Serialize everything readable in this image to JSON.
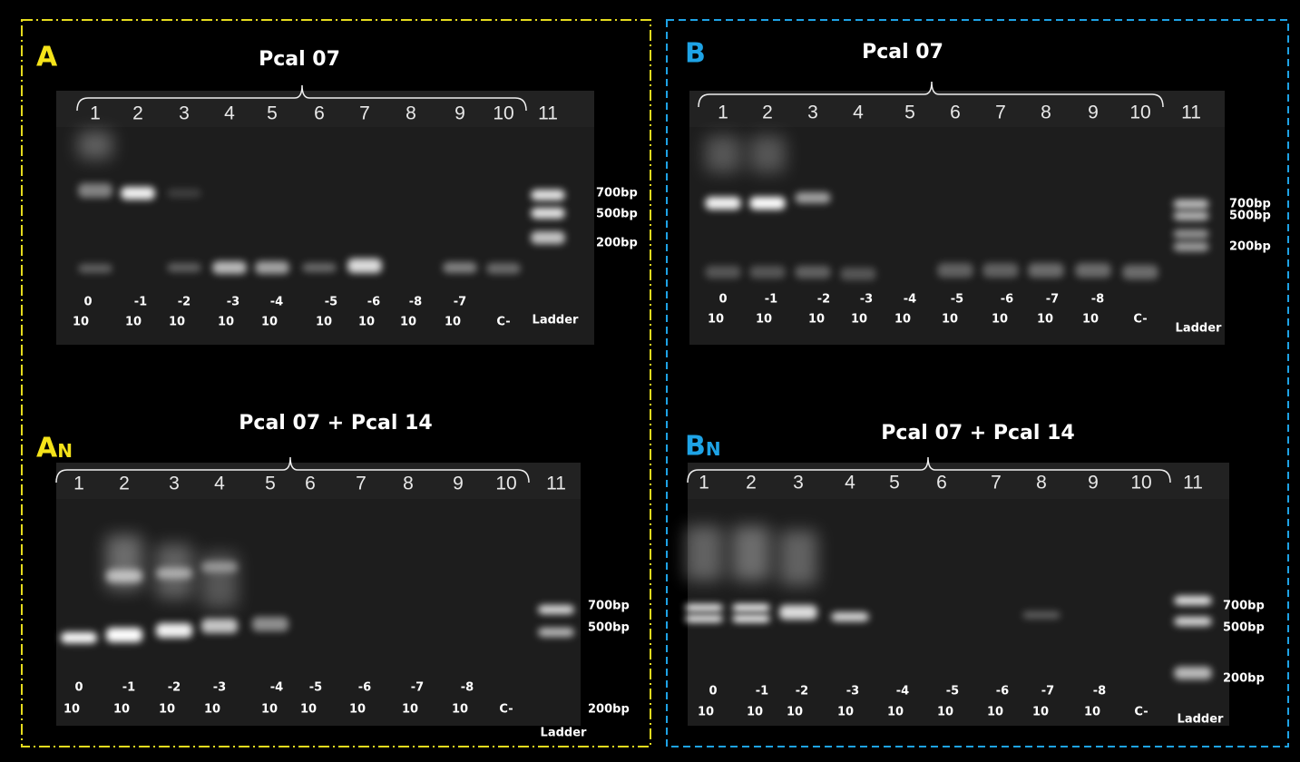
{
  "panels": [
    {
      "label": "A",
      "title": "Pcal  07",
      "lane_numbers": [
        1,
        2,
        3,
        4,
        5,
        6,
        7,
        8,
        9,
        10,
        11
      ],
      "exponents": [
        "0",
        "-1",
        "-2",
        "-3",
        "-4",
        "-5",
        "-6",
        "-8",
        "-7"
      ],
      "bases": [
        "10",
        "10",
        "10",
        "10",
        "10",
        "10",
        "10",
        "10",
        "10",
        "C-",
        "Ladder"
      ],
      "ladder_sizes": [
        "700bp",
        "500bp",
        "200bp"
      ]
    },
    {
      "label": "A",
      "label_sub": "N",
      "title": "Pcal  07 + Pcal 14",
      "lane_numbers": [
        1,
        2,
        3,
        4,
        5,
        6,
        7,
        8,
        9,
        10,
        11
      ],
      "exponents": [
        "0",
        "-1",
        "-2",
        "-3",
        "-4",
        "-5",
        "-6",
        "-7",
        "-8"
      ],
      "bases": [
        "10",
        "10",
        "10",
        "10",
        "10",
        "10",
        "10",
        "10",
        "10",
        "C-",
        "Ladder"
      ],
      "ladder_sizes": [
        "700bp",
        "500bp",
        "200bp"
      ]
    },
    {
      "label": "B",
      "title": "Pcal  07",
      "lane_numbers": [
        1,
        2,
        3,
        4,
        5,
        6,
        7,
        8,
        9,
        10,
        11
      ],
      "exponents": [
        "0",
        "-1",
        "-2",
        "-3",
        "-4",
        "-5",
        "-6",
        "-7",
        "-8"
      ],
      "bases": [
        "10",
        "10",
        "10",
        "10",
        "10",
        "10",
        "10",
        "10",
        "10",
        "C-",
        "Ladder"
      ],
      "ladder_sizes": [
        "700bp",
        "500bp",
        "200bp"
      ]
    },
    {
      "label": "B",
      "label_sub": "N",
      "title": "Pcal  07 + Pcal 14",
      "lane_numbers": [
        1,
        2,
        3,
        4,
        5,
        6,
        7,
        8,
        9,
        10,
        11
      ],
      "exponents": [
        "0",
        "-1",
        "-2",
        "-3",
        "-4",
        "-5",
        "-6",
        "-7",
        "-8"
      ],
      "bases": [
        "10",
        "10",
        "10",
        "10",
        "10",
        "10",
        "10",
        "10",
        "10",
        "C-",
        "Ladder"
      ],
      "ladder_sizes": [
        "700bp",
        "500bp",
        "200bp"
      ]
    }
  ]
}
